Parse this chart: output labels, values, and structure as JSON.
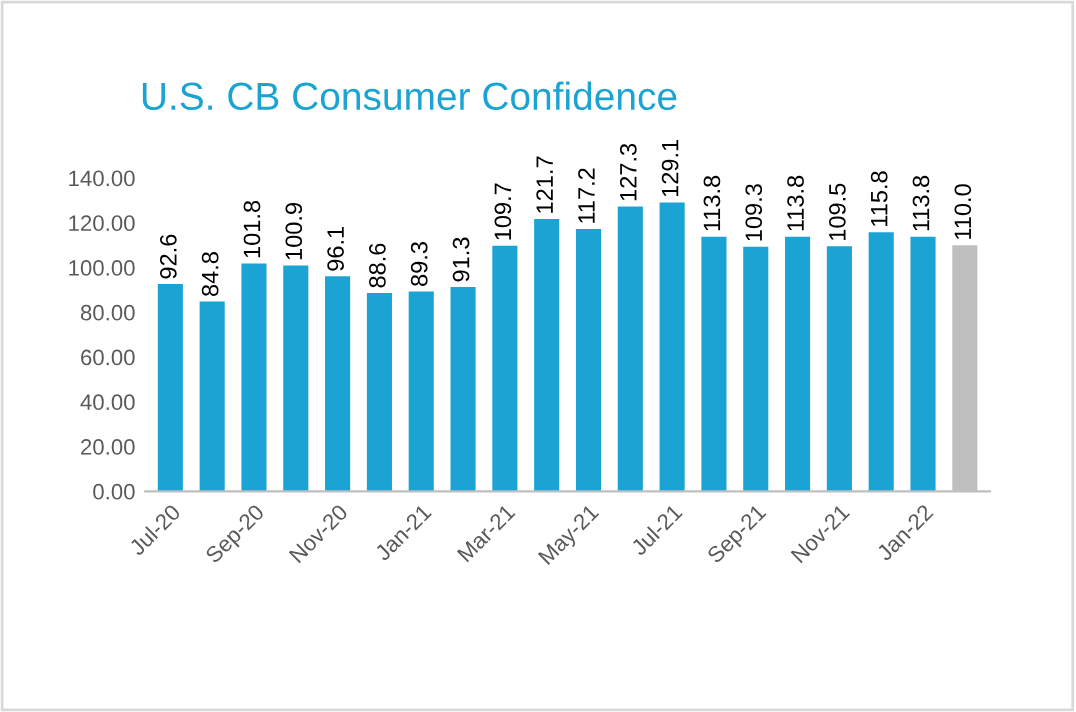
{
  "chart_data": {
    "type": "bar",
    "title": "U.S. CB Consumer Confidence",
    "categories": [
      "Jul-20",
      null,
      "Sep-20",
      null,
      "Nov-20",
      null,
      "Jan-21",
      null,
      "Mar-21",
      null,
      "May-21",
      null,
      "Jul-21",
      null,
      "Sep-21",
      null,
      "Nov-21",
      null,
      "Jan-22",
      null
    ],
    "values": [
      92.6,
      84.8,
      101.8,
      100.9,
      96.1,
      88.6,
      89.3,
      91.3,
      109.7,
      121.7,
      117.2,
      127.3,
      129.1,
      113.8,
      109.3,
      113.8,
      109.5,
      115.8,
      113.8,
      110.0
    ],
    "value_labels": [
      "92.6",
      "84.8",
      "101.8",
      "100.9",
      "96.1",
      "88.6",
      "89.3",
      "91.3",
      "109.7",
      "121.7",
      "117.2",
      "127.3",
      "129.1",
      "113.8",
      "109.3",
      "113.8",
      "109.5",
      "115.8",
      "113.8",
      "110.0"
    ],
    "colors": [
      "#1ba3d3",
      "#1ba3d3",
      "#1ba3d3",
      "#1ba3d3",
      "#1ba3d3",
      "#1ba3d3",
      "#1ba3d3",
      "#1ba3d3",
      "#1ba3d3",
      "#1ba3d3",
      "#1ba3d3",
      "#1ba3d3",
      "#1ba3d3",
      "#1ba3d3",
      "#1ba3d3",
      "#1ba3d3",
      "#1ba3d3",
      "#1ba3d3",
      "#1ba3d3",
      "#bfbfbf"
    ],
    "ylim": [
      0,
      140
    ],
    "yticks": [
      {
        "value": 0,
        "label": "0.00"
      },
      {
        "value": 20,
        "label": "20.00"
      },
      {
        "value": 40,
        "label": "40.00"
      },
      {
        "value": 60,
        "label": "60.00"
      },
      {
        "value": 80,
        "label": "80.00"
      },
      {
        "value": 100,
        "label": "100.00"
      },
      {
        "value": 120,
        "label": "120.00"
      },
      {
        "value": 140,
        "label": "140.00"
      }
    ],
    "grid": false,
    "legend": false
  }
}
